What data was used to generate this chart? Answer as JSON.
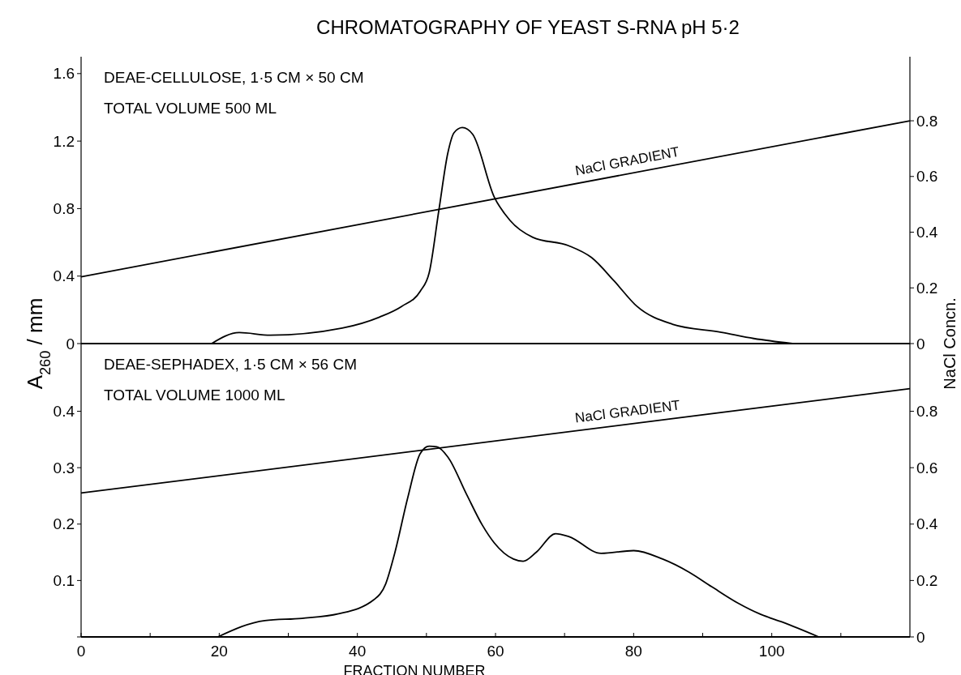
{
  "chart_data": [
    {
      "type": "line",
      "title": "CHROMATOGRAPHY OF YEAST S-RNA pH 5·2",
      "ylabel": "A$_{260}$ / mm",
      "y2label": "NaCl Concn.",
      "annotations": [
        "DEAE-CELLULOSE, 1·5 CM × 50 CM",
        "TOTAL VOLUME 500 ML",
        "NaCl GRADIENT"
      ],
      "xlim": [
        0,
        120
      ],
      "ylim": [
        0,
        1.7
      ],
      "yticks": [
        0,
        0.4,
        0.8,
        1.2,
        1.6
      ],
      "y2lim": [
        0,
        1.03
      ],
      "y2ticks": [
        0,
        0.2,
        0.4,
        0.6,
        0.8
      ],
      "tick_labels": "y",
      "grid": false,
      "series": [
        {
          "color": "#000000",
          "x": [
            18.9,
            22.9,
            27.4,
            37.8,
            43.2,
            46.4,
            49.1,
            50.4,
            51.8,
            53.1,
            54,
            55.2,
            56.7,
            59.8,
            62.1,
            65.4,
            70.6,
            73.9,
            77.2,
            80.5,
            85.6,
            92.7,
            97.4,
            103
          ],
          "values": [
            0,
            0.065,
            0.05,
            0.092,
            0.157,
            0.22,
            0.31,
            0.42,
            0.79,
            1.13,
            1.25,
            1.28,
            1.24,
            0.87,
            0.73,
            0.63,
            0.58,
            0.51,
            0.37,
            0.22,
            0.115,
            0.067,
            0.03,
            0
          ]
        },
        {
          "color": "#000000",
          "axis": "y2",
          "x": [
            0,
            120
          ],
          "values": [
            0.24,
            0.8
          ]
        }
      ]
    },
    {
      "type": "line",
      "xlabel": "FRACTION NUMBER",
      "annotations": [
        "DEAE-SEPHADEX, 1·5 CM × 56 CM",
        "TOTAL VOLUME 1000 ML",
        "NaCl GRADIENT"
      ],
      "xlim": [
        0,
        120
      ],
      "xticks": [
        0,
        {
          "value": 10,
          "label": null
        },
        20,
        {
          "value": 30,
          "label": null
        },
        40,
        {
          "value": 50,
          "label": null
        },
        60,
        {
          "value": 70,
          "label": null
        },
        80,
        {
          "value": 90,
          "label": null
        },
        100,
        {
          "value": 110,
          "label": null
        }
      ],
      "ylim": [
        0,
        0.52
      ],
      "yticks": [
        {
          "value": 0,
          "label": null
        },
        0.1,
        0.2,
        0.3,
        0.4
      ],
      "y2lim": [
        0,
        1.04
      ],
      "y2ticks": [
        0,
        0.2,
        0.4,
        0.6,
        0.8
      ],
      "grid": false,
      "series": [
        {
          "color": "#000000",
          "x": [
            19.8,
            26.6,
            32,
            37.3,
            42.4,
            44.1,
            45.4,
            47.3,
            49.1,
            50.4,
            51.5,
            53.1,
            55.8,
            58.1,
            59.8,
            62.6,
            64,
            65.9,
            68.7,
            70.6,
            75.3,
            80,
            84.2,
            88,
            91.3,
            95.1,
            98.4,
            101.6,
            106.8
          ],
          "values": [
            0,
            0.029,
            0.033,
            0.041,
            0.066,
            0.094,
            0.148,
            0.247,
            0.325,
            0.338,
            0.337,
            0.319,
            0.253,
            0.198,
            0.167,
            0.138,
            0.134,
            0.15,
            0.183,
            0.178,
            0.148,
            0.153,
            0.138,
            0.115,
            0.089,
            0.06,
            0.04,
            0.026,
            0
          ]
        },
        {
          "color": "#000000",
          "axis": "y2",
          "x": [
            0,
            120
          ],
          "values": [
            0.51,
            0.88
          ]
        }
      ]
    }
  ]
}
